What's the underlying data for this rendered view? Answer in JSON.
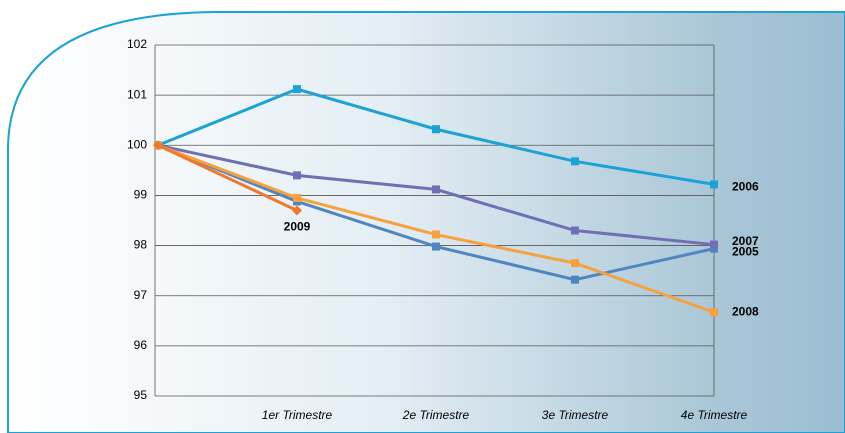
{
  "chart_data": {
    "type": "line",
    "categories": [
      null,
      "1er Trimestre",
      "2e Trimestre",
      "3e Trimestre",
      "4e Trimestre"
    ],
    "series": [
      {
        "name": "2006",
        "color": "#1aa3d4",
        "values": [
          100,
          101.12,
          100.32,
          99.68,
          99.22
        ]
      },
      {
        "name": "2007",
        "color": "#4f86c0",
        "values": [
          100,
          98.88,
          97.98,
          97.32,
          97.94
        ]
      },
      {
        "name": "2005",
        "color": "#6f6fb5",
        "values": [
          100,
          99.4,
          99.12,
          98.3,
          98.02
        ]
      },
      {
        "name": "2008",
        "color": "#f7a13e",
        "values": [
          100,
          98.95,
          98.22,
          97.65,
          96.67
        ]
      },
      {
        "name": "2009",
        "color": "#f0782d",
        "values": [
          100,
          98.7,
          null,
          null,
          null
        ],
        "marker": "diamond"
      }
    ],
    "ylim": [
      95,
      102
    ],
    "yticks": [
      95,
      96,
      97,
      98,
      99,
      100,
      101,
      102
    ],
    "grid": true
  }
}
